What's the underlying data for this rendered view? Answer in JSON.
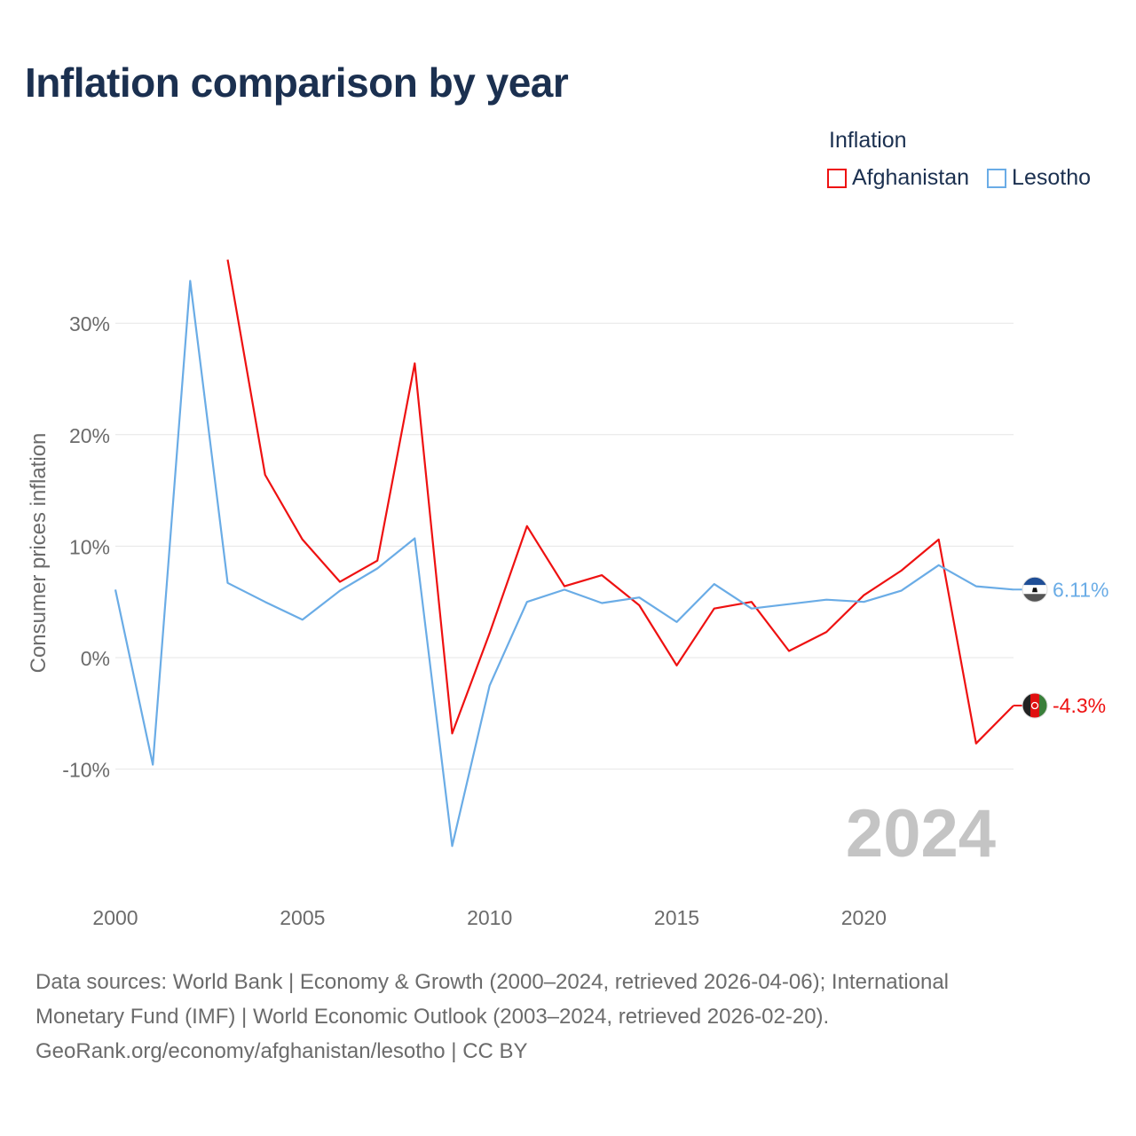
{
  "chart_data": {
    "type": "line",
    "title": "Inflation comparison by year",
    "ylabel": "Consumer prices inflation",
    "xlabel": "",
    "legend_title": "Inflation",
    "legend_position": "top-right",
    "xlim": [
      2000,
      2024
    ],
    "ylim": [
      -19,
      40
    ],
    "x_ticks": [
      2000,
      2005,
      2010,
      2015,
      2020
    ],
    "x_tick_labels": [
      "2000",
      "2005",
      "2010",
      "2015",
      "2020"
    ],
    "y_ticks": [
      -10,
      0,
      10,
      20,
      30
    ],
    "y_tick_labels": [
      "-10%",
      "0%",
      "10%",
      "20%",
      "30%"
    ],
    "grid": true,
    "year_watermark": "2024",
    "series": [
      {
        "name": "Afghanistan",
        "color": "#ee1111",
        "end_label": "-4.3%",
        "x": [
          2003,
          2004,
          2005,
          2006,
          2007,
          2008,
          2009,
          2010,
          2011,
          2012,
          2013,
          2014,
          2015,
          2016,
          2017,
          2018,
          2019,
          2020,
          2021,
          2022,
          2023,
          2024
        ],
        "values": [
          35.7,
          16.4,
          10.6,
          6.8,
          8.7,
          26.4,
          -6.8,
          2.2,
          11.8,
          6.4,
          7.4,
          4.7,
          -0.7,
          4.4,
          5.0,
          0.6,
          2.3,
          5.6,
          7.8,
          10.6,
          -7.7,
          -4.3
        ]
      },
      {
        "name": "Lesotho",
        "color": "#6aace6",
        "end_label": "6.11%",
        "x": [
          2000,
          2001,
          2002,
          2003,
          2004,
          2005,
          2006,
          2007,
          2008,
          2009,
          2010,
          2011,
          2012,
          2013,
          2014,
          2015,
          2016,
          2017,
          2018,
          2019,
          2020,
          2021,
          2022,
          2023,
          2024
        ],
        "values": [
          6.1,
          -9.6,
          33.8,
          6.7,
          5.0,
          3.4,
          6.0,
          8.0,
          10.7,
          -16.9,
          -2.5,
          5.0,
          6.1,
          4.9,
          5.4,
          3.2,
          6.6,
          4.4,
          4.8,
          5.2,
          5.0,
          6.0,
          8.3,
          6.4,
          6.11
        ]
      }
    ]
  },
  "sources": {
    "line1": "Data sources: World Bank | Economy & Growth (2000–2024, retrieved 2026-04-06); International",
    "line2": "Monetary Fund (IMF) | World Economic Outlook (2003–2024, retrieved 2026-02-20).",
    "line3": "GeoRank.org/economy/afghanistan/lesotho | CC BY"
  }
}
